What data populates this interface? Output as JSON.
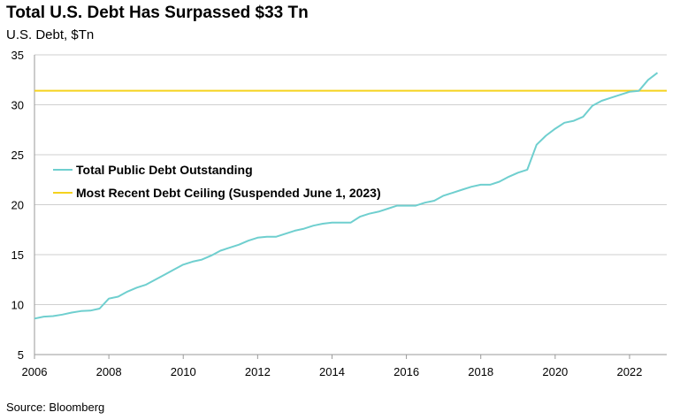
{
  "header": {
    "title": "Total U.S. Debt Has Surpassed $33 Tn",
    "subtitle": "U.S. Debt, $Tn"
  },
  "footer": {
    "source": "Source: Bloomberg"
  },
  "colors": {
    "debt_line": "#6fcfcf",
    "ceiling_line": "#f5d21e",
    "grid": "#cfcfcf",
    "axis": "#9a9a9a"
  },
  "chart_data": {
    "type": "line",
    "title": "Total U.S. Debt Has Surpassed $33 Tn",
    "ylabel": "U.S. Debt, $Tn",
    "xlim": [
      2006,
      2023
    ],
    "ylim": [
      5,
      35
    ],
    "x_ticks": [
      "2006",
      "2008",
      "2010",
      "2012",
      "2014",
      "2016",
      "2018",
      "2020",
      "2022"
    ],
    "y_ticks": [
      "5",
      "10",
      "15",
      "20",
      "25",
      "30",
      "35"
    ],
    "grid": "horizontal",
    "legend_position": "center-left",
    "series": [
      {
        "name": "Total Public Debt Outstanding",
        "x": [
          2006.0,
          2006.25,
          2006.5,
          2006.75,
          2007.0,
          2007.25,
          2007.5,
          2007.75,
          2008.0,
          2008.25,
          2008.5,
          2008.75,
          2009.0,
          2009.25,
          2009.5,
          2009.75,
          2010.0,
          2010.25,
          2010.5,
          2010.75,
          2011.0,
          2011.25,
          2011.5,
          2011.75,
          2012.0,
          2012.25,
          2012.5,
          2012.75,
          2013.0,
          2013.25,
          2013.5,
          2013.75,
          2014.0,
          2014.25,
          2014.5,
          2014.75,
          2015.0,
          2015.25,
          2015.5,
          2015.75,
          2016.0,
          2016.25,
          2016.5,
          2016.75,
          2017.0,
          2017.25,
          2017.5,
          2017.75,
          2018.0,
          2018.25,
          2018.5,
          2018.75,
          2019.0,
          2019.25,
          2019.5,
          2019.75,
          2020.0,
          2020.25,
          2020.5,
          2020.75,
          2021.0,
          2021.25,
          2021.5,
          2021.75,
          2022.0,
          2022.25,
          2022.5,
          2022.75
        ],
        "values": [
          8.6,
          8.8,
          8.85,
          9.0,
          9.2,
          9.35,
          9.4,
          9.6,
          10.6,
          10.8,
          11.3,
          11.7,
          12.0,
          12.5,
          13.0,
          13.5,
          14.0,
          14.3,
          14.5,
          14.9,
          15.4,
          15.7,
          16.0,
          16.4,
          16.7,
          16.8,
          16.8,
          17.1,
          17.4,
          17.6,
          17.9,
          18.1,
          18.2,
          18.2,
          18.2,
          18.8,
          19.1,
          19.3,
          19.6,
          19.9,
          19.9,
          19.9,
          20.2,
          20.4,
          20.9,
          21.2,
          21.5,
          21.8,
          22.0,
          22.0,
          22.3,
          22.8,
          23.2,
          23.5,
          26.0,
          26.9,
          27.6,
          28.2,
          28.4,
          28.8,
          29.9,
          30.4,
          30.7,
          31.0,
          31.3,
          31.4,
          32.5,
          33.2
        ]
      },
      {
        "name": "Most Recent Debt Ceiling (Suspended June 1, 2023)",
        "x": [
          2006.0,
          2023.0
        ],
        "values": [
          31.4,
          31.4
        ]
      }
    ]
  }
}
